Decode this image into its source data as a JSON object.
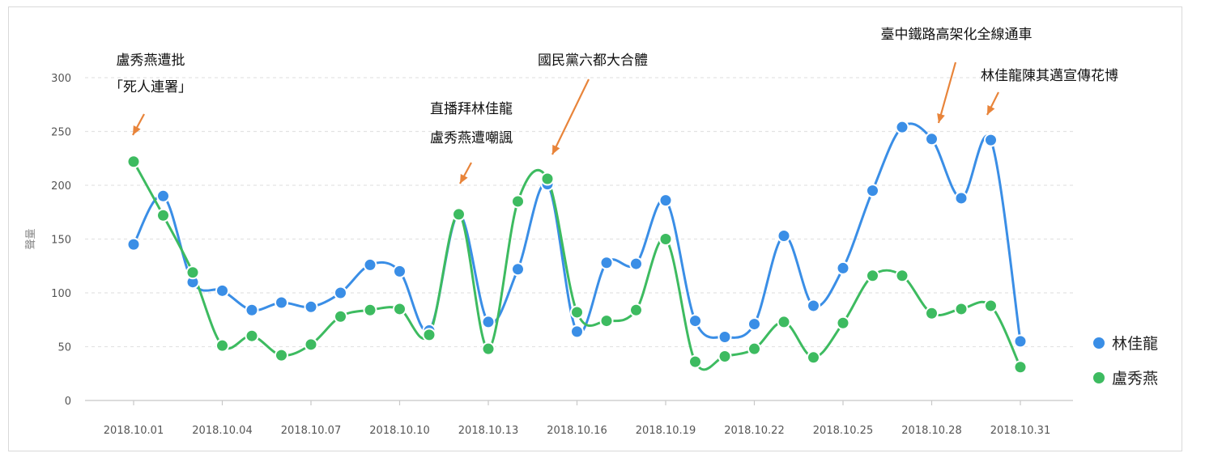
{
  "chart_data": {
    "type": "line",
    "ylabel": "聲量",
    "ylim": [
      0,
      300
    ],
    "yticks": [
      0,
      50,
      100,
      150,
      200,
      250,
      300
    ],
    "grid": true,
    "legend_position": "right",
    "smooth": true,
    "x": [
      "2018.10.01",
      "2018.10.02",
      "2018.10.03",
      "2018.10.04",
      "2018.10.05",
      "2018.10.06",
      "2018.10.07",
      "2018.10.08",
      "2018.10.09",
      "2018.10.10",
      "2018.10.11",
      "2018.10.12",
      "2018.10.13",
      "2018.10.14",
      "2018.10.15",
      "2018.10.16",
      "2018.10.17",
      "2018.10.18",
      "2018.10.19",
      "2018.10.20",
      "2018.10.21",
      "2018.10.22",
      "2018.10.23",
      "2018.10.24",
      "2018.10.25",
      "2018.10.26",
      "2018.10.27",
      "2018.10.28",
      "2018.10.29",
      "2018.10.30",
      "2018.10.31"
    ],
    "xtick_labels": [
      "2018.10.01",
      "2018.10.04",
      "2018.10.07",
      "2018.10.10",
      "2018.10.13",
      "2018.10.16",
      "2018.10.19",
      "2018.10.22",
      "2018.10.25",
      "2018.10.28",
      "2018.10.31"
    ],
    "series": [
      {
        "name": "林佳龍",
        "color": "#3a8ee6",
        "values": [
          145,
          190,
          110,
          102,
          84,
          91,
          87,
          100,
          126,
          120,
          65,
          173,
          73,
          122,
          201,
          64,
          128,
          127,
          186,
          74,
          59,
          71,
          153,
          88,
          123,
          195,
          254,
          243,
          188,
          242,
          55
        ]
      },
      {
        "name": "盧秀燕",
        "color": "#3dbb60",
        "values": [
          222,
          172,
          119,
          51,
          60,
          42,
          52,
          78,
          84,
          85,
          61,
          173,
          48,
          185,
          206,
          82,
          74,
          84,
          150,
          36,
          41,
          48,
          73,
          40,
          72,
          116,
          116,
          81,
          85,
          88,
          31
        ]
      }
    ],
    "annotations": [
      {
        "lines": [
          "盧秀燕遭批",
          "「死人連署」"
        ],
        "date_index": 0,
        "arrow_color": "#e8843a"
      },
      {
        "lines": [
          "直播拜林佳龍",
          "盧秀燕遭嘲諷"
        ],
        "date_index": 11,
        "arrow_color": "#e8843a"
      },
      {
        "lines": [
          "國民黨六都大合體"
        ],
        "date_index": 14,
        "arrow_color": "#e8843a"
      },
      {
        "lines": [
          "臺中鐵路高架化全線通車"
        ],
        "date_index": 27,
        "arrow_color": "#e8843a"
      },
      {
        "lines": [
          "林佳龍陳其邁宣傳花博"
        ],
        "date_index": 29,
        "arrow_color": "#e8843a"
      }
    ]
  }
}
